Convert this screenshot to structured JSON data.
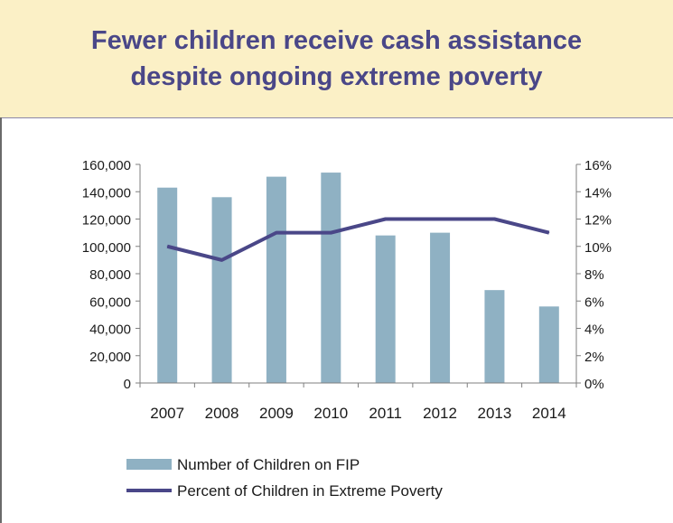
{
  "title": "Fewer children receive cash assistance despite ongoing extreme poverty",
  "chart_data": {
    "type": "bar",
    "categories": [
      "2007",
      "2008",
      "2009",
      "2010",
      "2011",
      "2012",
      "2013",
      "2014"
    ],
    "series": [
      {
        "name": "Number of Children on FIP",
        "type": "bar",
        "axis": "left",
        "color": "#8fb1c3",
        "values": [
          143000,
          136000,
          151000,
          154000,
          108000,
          110000,
          68000,
          56000
        ]
      },
      {
        "name": "Percent of Children in Extreme Poverty",
        "type": "line",
        "axis": "right",
        "color": "#4a4788",
        "values": [
          10,
          9,
          11,
          11,
          12,
          12,
          12,
          11
        ]
      }
    ],
    "y_left": {
      "min": 0,
      "max": 160000,
      "ticks": [
        "0",
        "20,000",
        "40,000",
        "60,000",
        "80,000",
        "100,000",
        "120,000",
        "140,000",
        "160,000"
      ]
    },
    "y_right": {
      "min": 0,
      "max": 16,
      "ticks": [
        "0%",
        "2%",
        "4%",
        "6%",
        "8%",
        "10%",
        "12%",
        "14%",
        "16%"
      ]
    },
    "legend_position": "bottom-left",
    "grid": false
  }
}
